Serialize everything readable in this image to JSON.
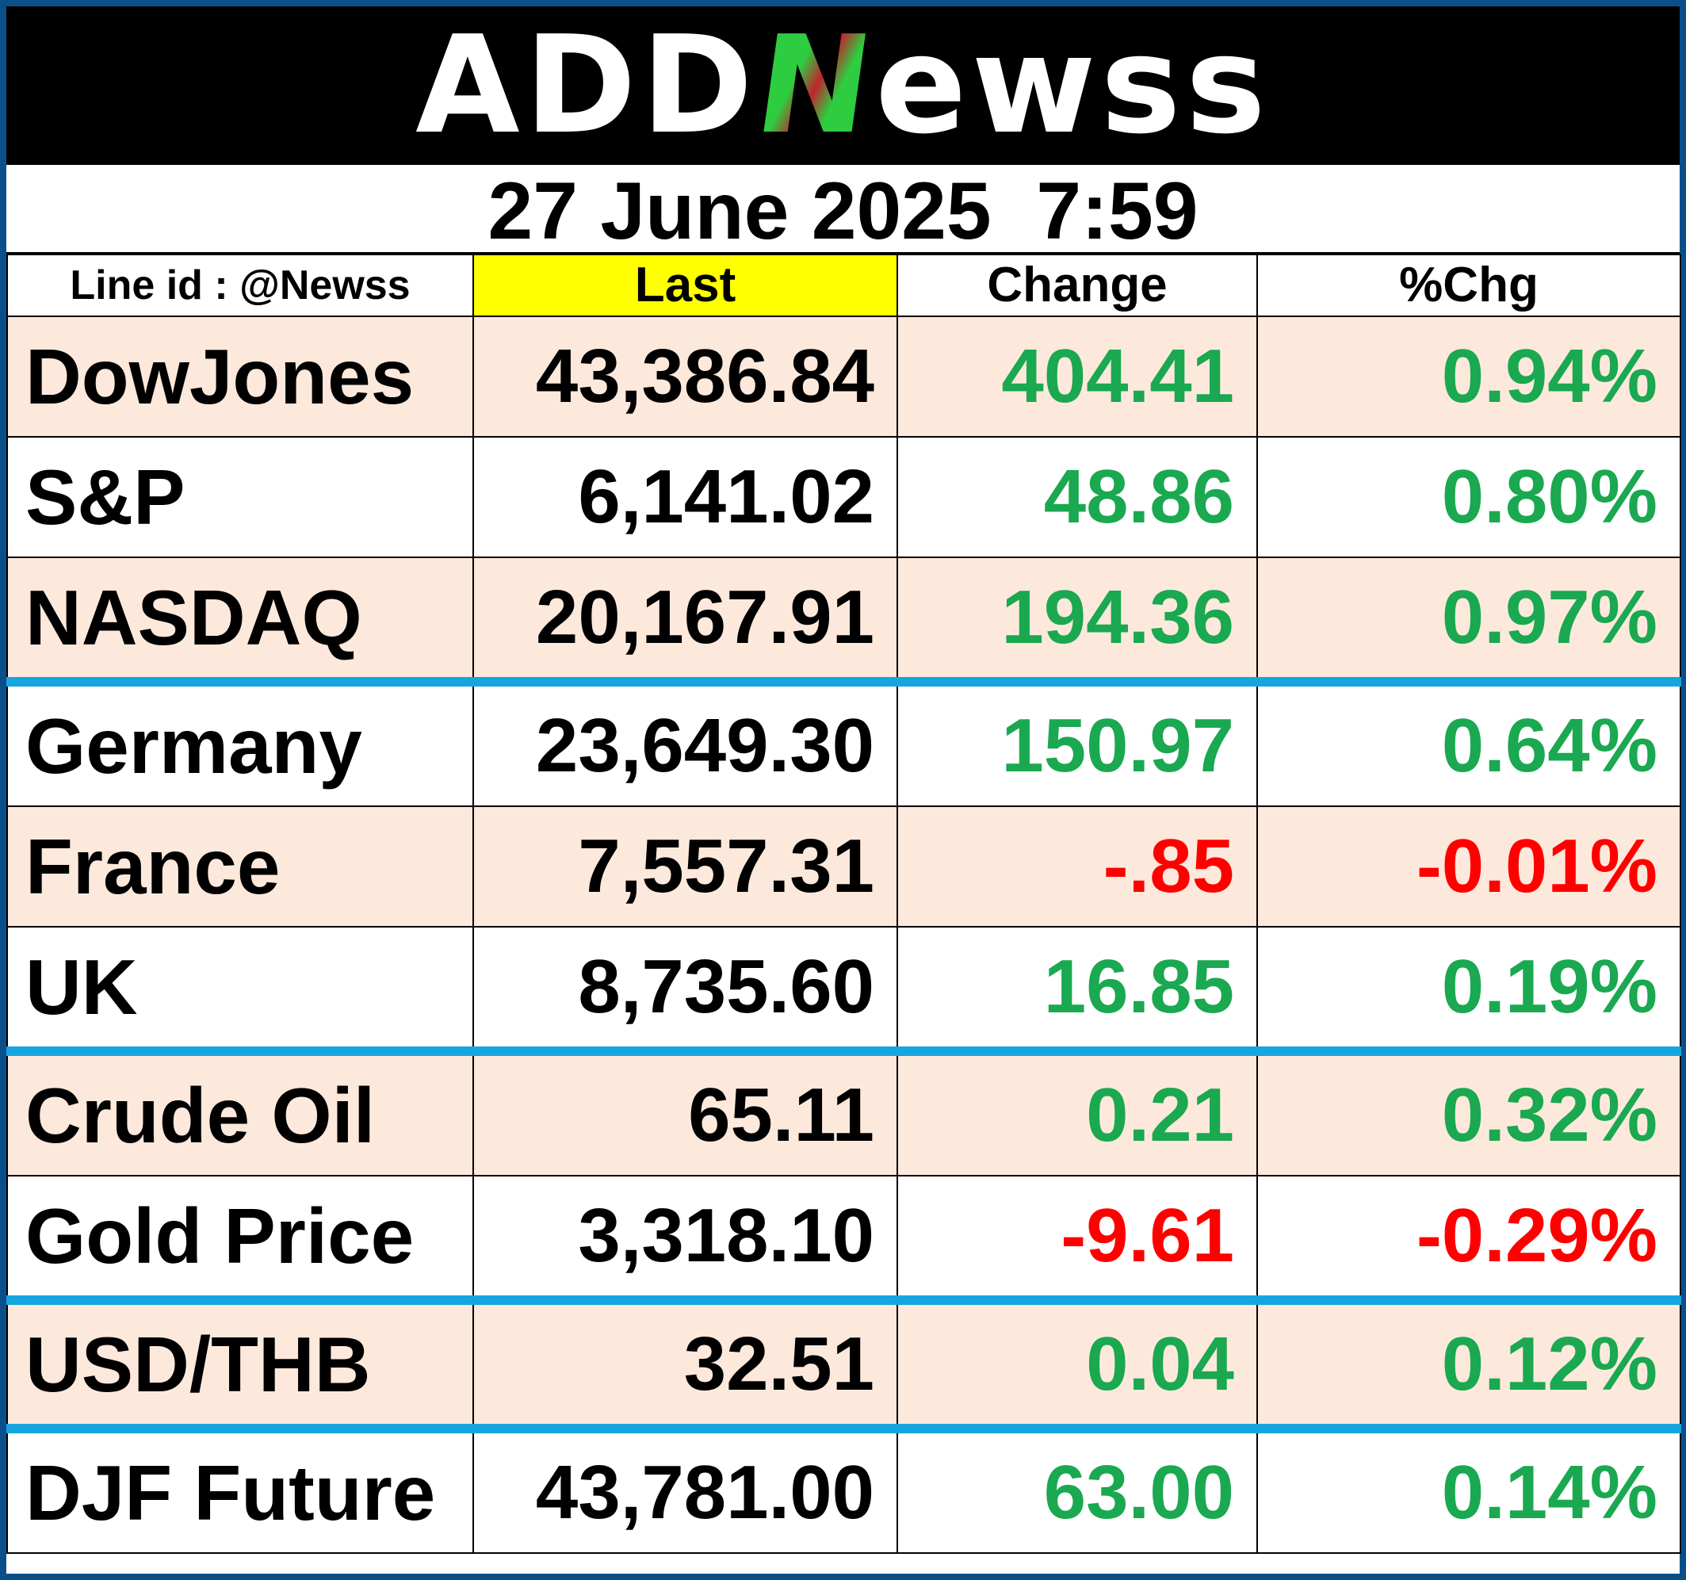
{
  "header": {
    "logo_a": "ADD",
    "logo_n": "N",
    "logo_b": "ewss",
    "datetime": "27 June 2025  7:59"
  },
  "columns": {
    "line_id": "Line id : @Newss",
    "last": "Last",
    "change": "Change",
    "pct": "%Chg"
  },
  "colors": {
    "positive": "#1aa850",
    "negative": "#ff0000",
    "shade": "#fde9dc",
    "highlight": "#ffff00",
    "separator": "#17a5e0"
  },
  "rows": [
    {
      "name": "DowJones",
      "last": "43,386.84",
      "change": "404.41",
      "pct": "0.94%",
      "dir": "pos"
    },
    {
      "name": "S&P",
      "last": "6,141.02",
      "change": "48.86",
      "pct": "0.80%",
      "dir": "pos"
    },
    {
      "name": "NASDAQ",
      "last": "20,167.91",
      "change": "194.36",
      "pct": "0.97%",
      "dir": "pos"
    },
    {
      "name": "Germany",
      "last": "23,649.30",
      "change": "150.97",
      "pct": "0.64%",
      "dir": "pos"
    },
    {
      "name": "France",
      "last": "7,557.31",
      "change": "-.85",
      "pct": "-0.01%",
      "dir": "neg"
    },
    {
      "name": "UK",
      "last": "8,735.60",
      "change": "16.85",
      "pct": "0.19%",
      "dir": "pos"
    },
    {
      "name": "Crude Oil",
      "last": "65.11",
      "change": "0.21",
      "pct": "0.32%",
      "dir": "pos"
    },
    {
      "name": "Gold Price",
      "last": "3,318.10",
      "change": "-9.61",
      "pct": "-0.29%",
      "dir": "neg"
    },
    {
      "name": "USD/THB",
      "last": "32.51",
      "change": "0.04",
      "pct": "0.12%",
      "dir": "pos"
    },
    {
      "name": "DJF Future",
      "last": "43,781.00",
      "change": "63.00",
      "pct": "0.14%",
      "dir": "pos"
    }
  ]
}
